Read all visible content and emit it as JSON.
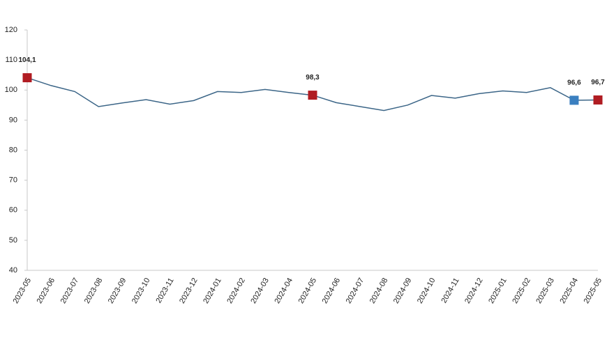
{
  "chart_data": {
    "type": "line",
    "categories": [
      "2023-05",
      "2023-06",
      "2023-07",
      "2023-08",
      "2023-09",
      "2023-10",
      "2023-11",
      "2023-12",
      "2024-01",
      "2024-02",
      "2024-03",
      "2024-04",
      "2024-05",
      "2024-06",
      "2024-07",
      "2024-08",
      "2024-09",
      "2024-10",
      "2024-11",
      "2024-12",
      "2025-01",
      "2025-02",
      "2025-03",
      "2025-04",
      "2025-05"
    ],
    "series": [
      {
        "color": "#3b6587",
        "values": [
          104.1,
          101.5,
          99.5,
          94.5,
          95.7,
          96.8,
          95.3,
          96.5,
          99.5,
          99.2,
          100.2,
          99.2,
          98.3,
          95.8,
          94.5,
          93.2,
          95.0,
          98.2,
          97.3,
          98.8,
          99.7,
          99.2,
          100.8,
          96.6,
          96.7
        ],
        "value_labels": [
          "104,1",
          null,
          null,
          null,
          null,
          null,
          null,
          null,
          null,
          null,
          null,
          null,
          "98,3",
          null,
          null,
          null,
          null,
          null,
          null,
          null,
          null,
          null,
          null,
          "96,6",
          "96,7"
        ],
        "marker_colors": [
          "#b01c22",
          null,
          null,
          null,
          null,
          null,
          null,
          null,
          null,
          null,
          null,
          null,
          "#b01c22",
          null,
          null,
          null,
          null,
          null,
          null,
          null,
          null,
          null,
          null,
          "#3a7fc0",
          "#b01c22"
        ]
      }
    ],
    "ylim": [
      40,
      120
    ],
    "yticks": [
      40,
      50,
      60,
      70,
      80,
      90,
      100,
      110,
      120
    ],
    "grid": false
  }
}
